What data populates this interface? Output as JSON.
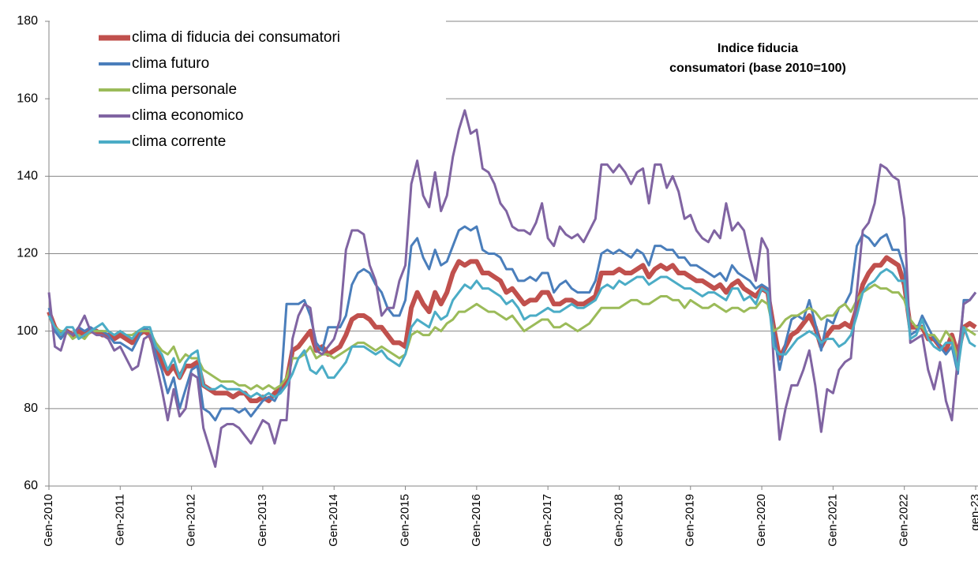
{
  "chart_data": {
    "type": "line",
    "title": [
      "Indice fiducia",
      "consumatori (base 2010=100)"
    ],
    "categories": [
      "Gen-2010",
      null,
      null,
      null,
      null,
      null,
      null,
      null,
      null,
      null,
      null,
      null,
      "Gen-2011",
      null,
      null,
      null,
      null,
      null,
      null,
      null,
      null,
      null,
      null,
      null,
      "Gen-2012",
      null,
      null,
      null,
      null,
      null,
      null,
      null,
      null,
      null,
      null,
      null,
      "Gen-2013",
      null,
      null,
      null,
      null,
      null,
      null,
      null,
      null,
      null,
      null,
      null,
      "Gen-2014",
      null,
      null,
      null,
      null,
      null,
      null,
      null,
      null,
      null,
      null,
      null,
      "Gen-2015",
      null,
      null,
      null,
      null,
      null,
      null,
      null,
      null,
      null,
      null,
      null,
      "Gen-2016",
      null,
      null,
      null,
      null,
      null,
      null,
      null,
      null,
      null,
      null,
      null,
      "Gen-2017",
      null,
      null,
      null,
      null,
      null,
      null,
      null,
      null,
      null,
      null,
      null,
      "Gen-2018",
      null,
      null,
      null,
      null,
      null,
      null,
      null,
      null,
      null,
      null,
      null,
      "Gen-2019",
      null,
      null,
      null,
      null,
      null,
      null,
      null,
      null,
      null,
      null,
      null,
      "Gen-2020",
      null,
      null,
      null,
      null,
      null,
      null,
      null,
      null,
      null,
      null,
      null,
      "Gen-2021",
      null,
      null,
      null,
      null,
      null,
      null,
      null,
      null,
      null,
      null,
      null,
      "Gen-2022",
      null,
      null,
      null,
      null,
      null,
      null,
      null,
      null,
      null,
      null,
      null,
      "gen-23"
    ],
    "series": [
      {
        "name": "clima di fiducia dei consumatori",
        "color": "#c0504d",
        "values": [
          105,
          101,
          99,
          100,
          99,
          100,
          99,
          100,
          100,
          99,
          99,
          98,
          99,
          98,
          97,
          99,
          100,
          99,
          95,
          92,
          89,
          91,
          88,
          91,
          91,
          92,
          86,
          85,
          84,
          84,
          84,
          83,
          84,
          84,
          82,
          82,
          83,
          82,
          84,
          85,
          87,
          95,
          96,
          98,
          100,
          95,
          96,
          94,
          95,
          96,
          99,
          103,
          104,
          104,
          103,
          101,
          101,
          99,
          97,
          97,
          96,
          106,
          110,
          107,
          105,
          110,
          107,
          110,
          115,
          118,
          117,
          118,
          118,
          115,
          115,
          114,
          113,
          110,
          111,
          109,
          107,
          108,
          108,
          110,
          110,
          107,
          107,
          108,
          108,
          107,
          107,
          108,
          109,
          115,
          115,
          115,
          116,
          115,
          115,
          116,
          117,
          114,
          116,
          117,
          116,
          117,
          115,
          115,
          114,
          113,
          113,
          112,
          111,
          112,
          110,
          112,
          113,
          111,
          110,
          109,
          111,
          110,
          101,
          93,
          96,
          99,
          100,
          102,
          104,
          101,
          96,
          99,
          101,
          101,
          102,
          101,
          106,
          112,
          115,
          117,
          117,
          119,
          118,
          117,
          112,
          101,
          101,
          101,
          98,
          98,
          96,
          95,
          99,
          94,
          101,
          102,
          101
        ]
      },
      {
        "name": "clima futuro",
        "color": "#4a7ebb",
        "values": [
          106,
          100,
          98,
          100,
          99,
          101,
          100,
          101,
          100,
          100,
          99,
          97,
          97,
          96,
          95,
          98,
          101,
          100,
          94,
          90,
          84,
          88,
          80,
          85,
          90,
          91,
          80,
          79,
          77,
          80,
          80,
          80,
          79,
          80,
          78,
          80,
          82,
          83,
          82,
          85,
          107,
          107,
          107,
          108,
          104,
          97,
          95,
          101,
          101,
          101,
          104,
          112,
          115,
          116,
          115,
          112,
          110,
          106,
          104,
          104,
          108,
          122,
          124,
          119,
          116,
          121,
          117,
          118,
          122,
          126,
          127,
          126,
          127,
          121,
          120,
          120,
          119,
          116,
          116,
          113,
          113,
          114,
          113,
          115,
          115,
          110,
          112,
          113,
          111,
          110,
          110,
          110,
          113,
          120,
          121,
          120,
          121,
          120,
          119,
          121,
          120,
          117,
          122,
          122,
          121,
          121,
          119,
          119,
          117,
          117,
          116,
          115,
          114,
          115,
          113,
          117,
          115,
          114,
          113,
          111,
          112,
          111,
          100,
          90,
          97,
          103,
          104,
          103,
          108,
          102,
          95,
          103,
          102,
          106,
          107,
          110,
          122,
          125,
          124,
          122,
          124,
          125,
          121,
          121,
          116,
          99,
          100,
          104,
          101,
          98,
          96,
          94,
          96,
          89,
          108,
          108,
          110
        ]
      },
      {
        "name": "clima personale",
        "color": "#9bbb59",
        "values": [
          104,
          101,
          100,
          100,
          98,
          99,
          98,
          100,
          100,
          100,
          100,
          99,
          100,
          99,
          99,
          100,
          100,
          100,
          97,
          95,
          94,
          96,
          92,
          94,
          93,
          93,
          90,
          89,
          88,
          87,
          87,
          87,
          86,
          86,
          85,
          86,
          85,
          86,
          85,
          86,
          88,
          93,
          93,
          94,
          96,
          93,
          94,
          94,
          93,
          94,
          95,
          96,
          97,
          97,
          96,
          95,
          96,
          95,
          94,
          93,
          94,
          99,
          100,
          99,
          99,
          101,
          100,
          102,
          103,
          105,
          105,
          106,
          107,
          106,
          105,
          105,
          104,
          103,
          104,
          102,
          100,
          101,
          102,
          103,
          103,
          101,
          101,
          102,
          101,
          100,
          101,
          102,
          104,
          106,
          106,
          106,
          106,
          107,
          108,
          108,
          107,
          107,
          108,
          109,
          109,
          108,
          108,
          106,
          108,
          107,
          106,
          106,
          107,
          106,
          105,
          106,
          106,
          105,
          106,
          106,
          108,
          107,
          100,
          101,
          103,
          104,
          104,
          105,
          106,
          105,
          103,
          104,
          104,
          106,
          107,
          105,
          108,
          110,
          111,
          112,
          111,
          111,
          110,
          110,
          108,
          103,
          101,
          101,
          99,
          99,
          97,
          100,
          98,
          93,
          101,
          100,
          99
        ]
      },
      {
        "name": "clima economico",
        "color": "#8064a2",
        "values": [
          110,
          96,
          95,
          100,
          99,
          101,
          104,
          100,
          99,
          99,
          98,
          95,
          96,
          93,
          90,
          91,
          98,
          99,
          92,
          85,
          77,
          85,
          78,
          80,
          89,
          88,
          75,
          70,
          65,
          75,
          76,
          76,
          75,
          73,
          71,
          74,
          77,
          76,
          71,
          77,
          77,
          98,
          104,
          107,
          106,
          95,
          94,
          96,
          98,
          103,
          121,
          126,
          126,
          125,
          117,
          113,
          104,
          106,
          106,
          113,
          117,
          138,
          144,
          135,
          132,
          141,
          131,
          135,
          145,
          152,
          157,
          151,
          152,
          142,
          141,
          138,
          133,
          131,
          127,
          126,
          126,
          125,
          128,
          133,
          124,
          122,
          127,
          125,
          124,
          125,
          123,
          126,
          129,
          143,
          143,
          141,
          143,
          141,
          138,
          141,
          142,
          133,
          143,
          143,
          137,
          140,
          136,
          129,
          130,
          126,
          124,
          123,
          126,
          124,
          133,
          126,
          128,
          126,
          119,
          113,
          124,
          121,
          92,
          72,
          80,
          86,
          86,
          90,
          95,
          86,
          74,
          85,
          84,
          90,
          92,
          93,
          110,
          126,
          128,
          133,
          143,
          142,
          140,
          139,
          129,
          97,
          98,
          99,
          90,
          85,
          92,
          82,
          77,
          93,
          107,
          108,
          110
        ]
      },
      {
        "name": "clima corrente",
        "color": "#4bacc6",
        "values": [
          104,
          101,
          99,
          101,
          101,
          98,
          99,
          100,
          101,
          102,
          100,
          99,
          100,
          99,
          98,
          100,
          101,
          101,
          96,
          94,
          90,
          93,
          88,
          92,
          94,
          95,
          86,
          85,
          85,
          86,
          85,
          85,
          85,
          84,
          83,
          84,
          83,
          84,
          83,
          84,
          86,
          89,
          93,
          95,
          90,
          89,
          91,
          88,
          88,
          90,
          92,
          96,
          96,
          96,
          95,
          94,
          95,
          93,
          92,
          91,
          94,
          101,
          103,
          102,
          101,
          105,
          103,
          104,
          108,
          110,
          112,
          111,
          113,
          111,
          111,
          110,
          109,
          107,
          108,
          106,
          103,
          104,
          104,
          105,
          106,
          105,
          105,
          106,
          107,
          106,
          106,
          107,
          108,
          111,
          112,
          111,
          113,
          112,
          113,
          114,
          114,
          112,
          113,
          114,
          114,
          113,
          112,
          111,
          111,
          110,
          109,
          110,
          110,
          109,
          108,
          111,
          111,
          108,
          109,
          107,
          111,
          110,
          96,
          94,
          94,
          96,
          98,
          99,
          100,
          99,
          97,
          98,
          98,
          96,
          97,
          99,
          104,
          110,
          112,
          113,
          115,
          116,
          115,
          113,
          113,
          98,
          99,
          103,
          98,
          96,
          95,
          97,
          97,
          90,
          101,
          97,
          96
        ]
      }
    ],
    "ylim": [
      60,
      180
    ],
    "yticks": [
      60,
      80,
      100,
      120,
      140,
      160,
      180
    ],
    "grid": true
  }
}
